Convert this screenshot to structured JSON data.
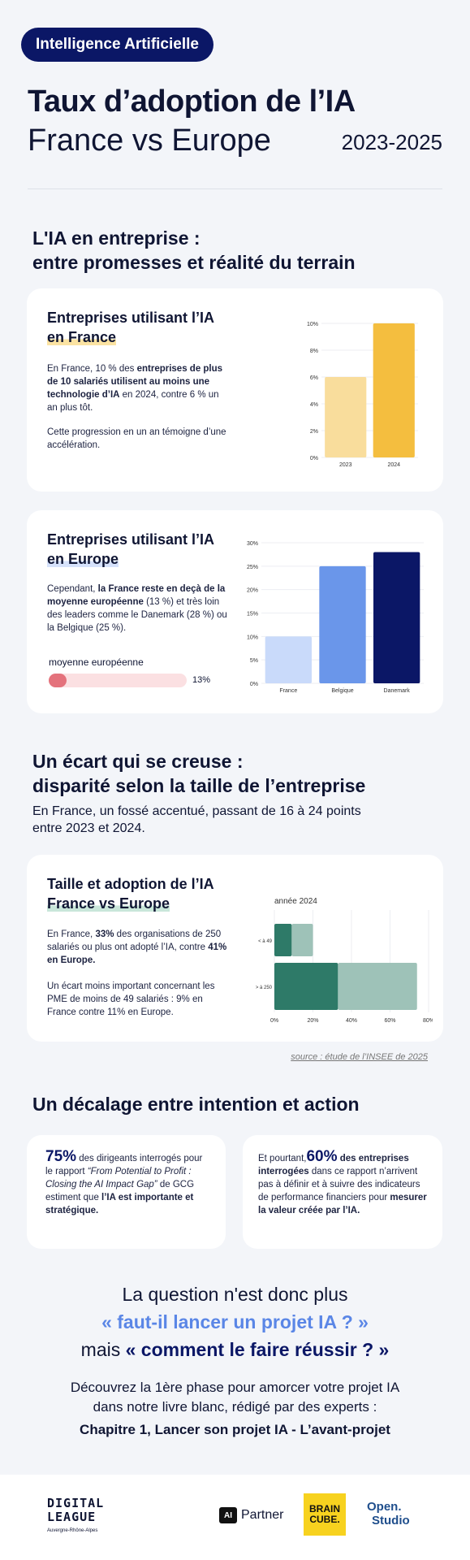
{
  "header": {
    "badge": "Intelligence Artificielle",
    "title_line1": "Taux d’adoption de l’IA",
    "title_line2": "France vs Europe",
    "years": "2023-2025"
  },
  "section1": {
    "heading_line1": "L'IA en entreprise :",
    "heading_line2": "entre promesses et réalité du terrain"
  },
  "card_france": {
    "title_line1": "Entreprises utilisant l’IA",
    "title_line2": "en France",
    "p1_a": "En France, 10 % des ",
    "p1_b": "entreprises de plus de 10 salariés utilisent au moins une technologie d’IA",
    "p1_c": " en 2024, contre 6 % un an plus tôt.",
    "p2": "Cette progression en un an témoigne d’une accélération."
  },
  "card_europe": {
    "title_line1": "Entreprises utilisant l’IA",
    "title_line2": "en Europe",
    "p1_a": "Cependant, ",
    "p1_b": "la France reste en deçà de la moyenne européenne",
    "p1_c": " (13 %) et très loin des leaders comme le Danemark (28 %) ou la Belgique (25 %).",
    "avg_label": "moyenne européenne",
    "avg_value_text": "13%",
    "avg_value": 13,
    "avg_max": 100
  },
  "section2": {
    "heading_line1": "Un écart qui se creuse :",
    "heading_line2": "disparité selon la taille de l’entreprise",
    "lead_line1": "En France, un fossé accentué, passant de 16 à 24 points",
    "lead_line2": "entre 2023 et 2024."
  },
  "card_size": {
    "title_line1": "Taille et adoption de l’IA",
    "title_line2": "France vs Europe",
    "p1_a": "En France, ",
    "p1_b": "33%",
    "p1_c": " des organisations de 250 salariés ou plus ont adopté l’IA, contre ",
    "p1_d": "41% en Europe.",
    "p2": "Un écart moins important concernant les PME de moins de 49 salariés : 9% en France contre 11% en Europe."
  },
  "source": "source : étude de l’INSEE de 2025",
  "section3": {
    "heading": "Un décalage entre intention et action"
  },
  "stat_left": {
    "num": "75%",
    "t1": " des dirigeants interrogés pour le rapport ",
    "t2": "“From Potential to Profit : Closing the AI Impact Gap”",
    "t3": " de GCG estiment que ",
    "t4": "l’IA est importante et stratégique."
  },
  "stat_right": {
    "t1": "Et pourtant,",
    "num": "60%",
    "t2": " des entreprises interrogées",
    "t3": " dans ce rapport n’arrivent pas à définir et à suivre des indicateurs de performance financiers pour ",
    "t4": "mesurer la valeur créée par l’IA."
  },
  "closing": {
    "q1": "La question n'est donc plus",
    "q2": "« faut-il lancer un projet IA ? »",
    "q3_a": "mais ",
    "q3_b": "« comment le faire réussir ? »",
    "d1": "Découvrez la 1ère phase pour amorcer votre projet IA",
    "d2": "dans notre livre blanc, rédigé par des experts :",
    "d3": "Chapitre 1, Lancer son projet IA - L’avant-projet"
  },
  "footer": {
    "dl_line1": "DIGITAL",
    "dl_line2": "LEAGUE",
    "dl_sub": "Auvergne-Rhône-Alpes",
    "ai_chip": "AI",
    "ai_partner": "Partner",
    "brain": "BRAIN CUBE.",
    "open": "Open.",
    "studio": "Studio"
  },
  "colors": {
    "navy": "#0b1766",
    "yellow_light": "#f9dd9c",
    "yellow": "#f4be3f",
    "blue_light": "#c9dafa",
    "blue": "#6a96ea",
    "blue_dark": "#0b1766",
    "green_dark": "#2e7a68",
    "green_light": "#9ec2b8",
    "pink": "#e4727c"
  },
  "chart_data": [
    {
      "type": "bar",
      "categories": [
        "2023",
        "2024"
      ],
      "values": [
        6,
        10
      ],
      "ylim": [
        0,
        10
      ],
      "yticks": [
        "0%",
        "2%",
        "4%",
        "6%",
        "8%",
        "10%"
      ],
      "colors": [
        "#f9dd9c",
        "#f4be3f"
      ]
    },
    {
      "type": "bar",
      "categories": [
        "France",
        "Belgique",
        "Danemark"
      ],
      "values": [
        10,
        25,
        28
      ],
      "ylim": [
        0,
        30
      ],
      "yticks": [
        "0%",
        "5%",
        "10%",
        "15%",
        "20%",
        "25%",
        "30%"
      ],
      "colors": [
        "#c9dafa",
        "#6a96ea",
        "#0b1766"
      ]
    },
    {
      "type": "bar",
      "orientation": "horizontal",
      "title": "année 2024",
      "categories": [
        "< à 49",
        "> à 250"
      ],
      "series": [
        {
          "values": [
            9,
            33
          ],
          "color": "#2e7a68"
        },
        {
          "values": [
            11,
            41
          ],
          "color": "#9ec2b8"
        }
      ],
      "xlim": [
        0,
        80
      ],
      "xticks": [
        "0%",
        "20%",
        "40%",
        "60%",
        "80%"
      ]
    }
  ]
}
